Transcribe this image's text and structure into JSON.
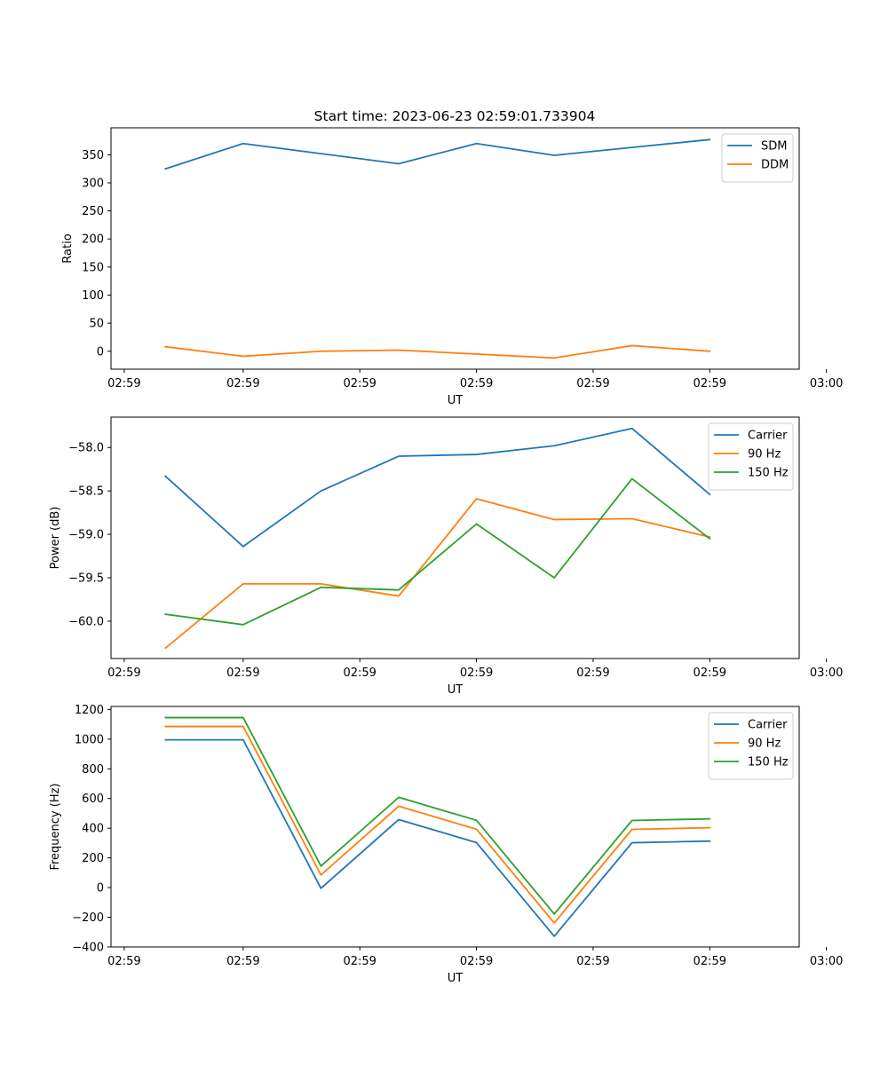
{
  "figure": {
    "title": "Start time: 2023-06-23 02:59:01.733904"
  },
  "chart_data": [
    {
      "type": "line",
      "title": "Start time: 2023-06-23 02:59:01.733904",
      "xlabel": "UT",
      "ylabel": "Ratio",
      "x": [
        1,
        2,
        3,
        4,
        5,
        6,
        7,
        8
      ],
      "xlim": [
        0.3,
        9.15
      ],
      "x_ticks": [
        0.47,
        2,
        3.5,
        5,
        6.5,
        8,
        9.5
      ],
      "x_tick_labels": [
        "02:59",
        "02:59",
        "02:59",
        "02:59",
        "02:59",
        "02:59",
        "03:00"
      ],
      "ylim": [
        -32,
        398
      ],
      "y_ticks": [
        0,
        50,
        100,
        150,
        200,
        250,
        300,
        350
      ],
      "y_tick_labels": [
        "0",
        "50",
        "100",
        "150",
        "200",
        "250",
        "300",
        "350"
      ],
      "series": [
        {
          "name": "SDM",
          "color": "#1f77b4",
          "values": [
            325,
            370,
            352,
            334,
            370,
            349,
            363,
            377
          ]
        },
        {
          "name": "DDM",
          "color": "#ff7f0e",
          "values": [
            8,
            -9,
            0,
            2,
            -5,
            -12,
            10,
            0
          ]
        }
      ],
      "legend": "top-right",
      "grid": false
    },
    {
      "type": "line",
      "xlabel": "UT",
      "ylabel": "Power (dB)",
      "x": [
        1,
        2,
        3,
        4,
        5,
        6,
        7,
        8
      ],
      "xlim": [
        0.3,
        9.15
      ],
      "x_ticks": [
        0.47,
        2,
        3.5,
        5,
        6.5,
        8,
        9.5
      ],
      "x_tick_labels": [
        "02:59",
        "02:59",
        "02:59",
        "02:59",
        "02:59",
        "02:59",
        "03:00"
      ],
      "ylim": [
        -60.43,
        -57.65
      ],
      "y_ticks": [
        -60.0,
        -59.5,
        -59.0,
        -58.5,
        -58.0
      ],
      "y_tick_labels": [
        "−60.0",
        "−59.5",
        "−59.0",
        "−58.5",
        "−58.0"
      ],
      "series": [
        {
          "name": "Carrier",
          "color": "#1f77b4",
          "values": [
            -58.33,
            -59.14,
            -58.5,
            -58.1,
            -58.08,
            -57.98,
            -57.78,
            -58.54
          ]
        },
        {
          "name": "90 Hz",
          "color": "#ff7f0e",
          "values": [
            -60.31,
            -59.57,
            -59.57,
            -59.71,
            -58.59,
            -58.83,
            -58.82,
            -59.03
          ]
        },
        {
          "name": "150 Hz",
          "color": "#2ca02c",
          "values": [
            -59.92,
            -60.04,
            -59.61,
            -59.64,
            -58.88,
            -59.5,
            -58.36,
            -59.05
          ]
        }
      ],
      "legend": "top-right",
      "grid": false
    },
    {
      "type": "line",
      "xlabel": "UT",
      "ylabel": "Frequency (Hz)",
      "x": [
        1,
        2,
        3,
        4,
        5,
        6,
        7,
        8
      ],
      "xlim": [
        0.3,
        9.15
      ],
      "x_ticks": [
        0.47,
        2,
        3.5,
        5,
        6.5,
        8,
        9.5
      ],
      "x_tick_labels": [
        "02:59",
        "02:59",
        "02:59",
        "02:59",
        "02:59",
        "02:59",
        "03:00"
      ],
      "ylim": [
        -400,
        1220
      ],
      "y_ticks": [
        -400,
        -200,
        0,
        200,
        400,
        600,
        800,
        1000,
        1200
      ],
      "y_tick_labels": [
        "−400",
        "−200",
        "0",
        "200",
        "400",
        "600",
        "800",
        "1000",
        "1200"
      ],
      "series": [
        {
          "name": "Carrier",
          "color": "#1f77b4",
          "values": [
            995,
            995,
            -5,
            458,
            303,
            -328,
            302,
            313
          ]
        },
        {
          "name": "90 Hz",
          "color": "#ff7f0e",
          "values": [
            1085,
            1085,
            85,
            548,
            393,
            -238,
            392,
            403
          ]
        },
        {
          "name": "150 Hz",
          "color": "#2ca02c",
          "values": [
            1145,
            1145,
            145,
            608,
            453,
            -178,
            452,
            463
          ]
        }
      ],
      "legend": "top-right",
      "grid": false
    }
  ]
}
